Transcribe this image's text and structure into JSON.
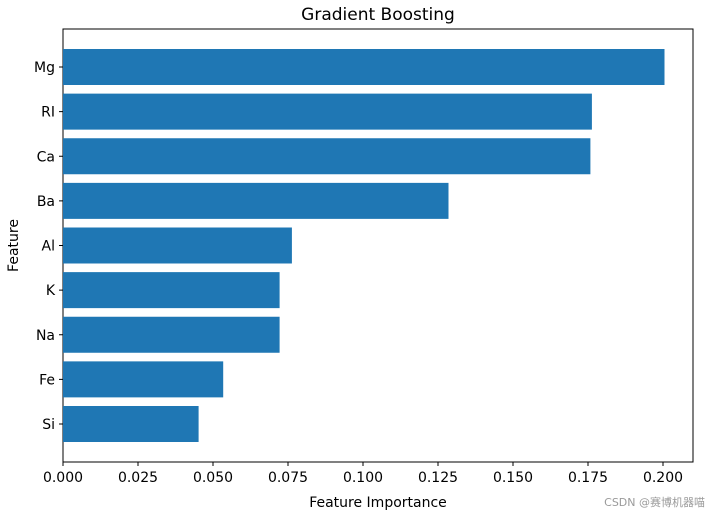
{
  "chart_data": {
    "type": "bar",
    "orientation": "horizontal",
    "title": "Gradient Boosting",
    "xlabel": "Feature Importance",
    "ylabel": "Feature",
    "categories": [
      "Mg",
      "RI",
      "Ca",
      "Ba",
      "Al",
      "K",
      "Na",
      "Fe",
      "Si"
    ],
    "values": [
      0.2005,
      0.1763,
      0.1758,
      0.1285,
      0.0763,
      0.0722,
      0.0722,
      0.0534,
      0.0452
    ],
    "xlim": [
      0,
      0.21
    ],
    "xticks": [
      0.0,
      0.025,
      0.05,
      0.075,
      0.1,
      0.125,
      0.15,
      0.175,
      0.2
    ],
    "xtick_labels": [
      "0.000",
      "0.025",
      "0.050",
      "0.075",
      "0.100",
      "0.125",
      "0.150",
      "0.175",
      "0.200"
    ],
    "bar_color": "#1f77b4",
    "grid": false,
    "legend": "none"
  },
  "watermark": "CSDN @赛博机器喵"
}
